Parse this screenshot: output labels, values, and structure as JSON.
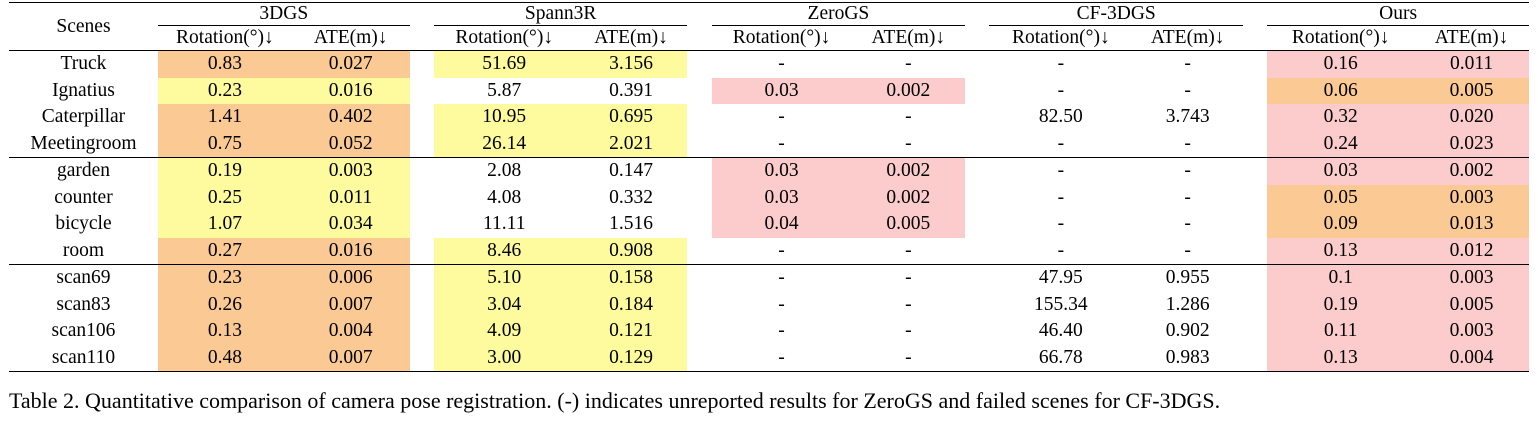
{
  "table": {
    "scene_header": "Scenes",
    "methods": [
      "3DGS",
      "Spann3R",
      "ZeroGS",
      "CF-3DGS",
      "Ours"
    ],
    "sub_headers": [
      "Rotation(°)↓",
      "ATE(m)↓"
    ],
    "colors": {
      "red": "#fccccc",
      "orange": "#fbca94",
      "yellow": "#fdfb9e"
    },
    "groups": [
      {
        "rows": [
          {
            "scene": "Truck",
            "values": [
              "0.83",
              "0.027",
              "51.69",
              "3.156",
              "-",
              "-",
              "-",
              "-",
              "0.16",
              "0.011"
            ],
            "colors": [
              "orange",
              "orange",
              "yellow",
              "yellow",
              "",
              "",
              "",
              "",
              "red",
              "red"
            ]
          },
          {
            "scene": "Ignatius",
            "values": [
              "0.23",
              "0.016",
              "5.87",
              "0.391",
              "0.03",
              "0.002",
              "-",
              "-",
              "0.06",
              "0.005"
            ],
            "colors": [
              "yellow",
              "yellow",
              "",
              "",
              "red",
              "red",
              "",
              "",
              "orange",
              "orange"
            ]
          },
          {
            "scene": "Caterpillar",
            "values": [
              "1.41",
              "0.402",
              "10.95",
              "0.695",
              "-",
              "-",
              "82.50",
              "3.743",
              "0.32",
              "0.020"
            ],
            "colors": [
              "orange",
              "orange",
              "yellow",
              "yellow",
              "",
              "",
              "",
              "",
              "red",
              "red"
            ]
          },
          {
            "scene": "Meetingroom",
            "values": [
              "0.75",
              "0.052",
              "26.14",
              "2.021",
              "-",
              "-",
              "-",
              "-",
              "0.24",
              "0.023"
            ],
            "colors": [
              "orange",
              "orange",
              "yellow",
              "yellow",
              "",
              "",
              "",
              "",
              "red",
              "red"
            ]
          }
        ]
      },
      {
        "rows": [
          {
            "scene": "garden",
            "values": [
              "0.19",
              "0.003",
              "2.08",
              "0.147",
              "0.03",
              "0.002",
              "-",
              "-",
              "0.03",
              "0.002"
            ],
            "colors": [
              "yellow",
              "yellow",
              "",
              "",
              "red",
              "red",
              "",
              "",
              "red",
              "red"
            ]
          },
          {
            "scene": "counter",
            "values": [
              "0.25",
              "0.011",
              "4.08",
              "0.332",
              "0.03",
              "0.002",
              "-",
              "-",
              "0.05",
              "0.003"
            ],
            "colors": [
              "yellow",
              "yellow",
              "",
              "",
              "red",
              "red",
              "",
              "",
              "orange",
              "orange"
            ]
          },
          {
            "scene": "bicycle",
            "values": [
              "1.07",
              "0.034",
              "11.11",
              "1.516",
              "0.04",
              "0.005",
              "-",
              "-",
              "0.09",
              "0.013"
            ],
            "colors": [
              "yellow",
              "yellow",
              "",
              "",
              "red",
              "red",
              "",
              "",
              "orange",
              "orange"
            ]
          },
          {
            "scene": "room",
            "values": [
              "0.27",
              "0.016",
              "8.46",
              "0.908",
              "-",
              "-",
              "-",
              "-",
              "0.13",
              "0.012"
            ],
            "colors": [
              "orange",
              "orange",
              "yellow",
              "yellow",
              "",
              "",
              "",
              "",
              "red",
              "red"
            ]
          }
        ]
      },
      {
        "rows": [
          {
            "scene": "scan69",
            "values": [
              "0.23",
              "0.006",
              "5.10",
              "0.158",
              "-",
              "-",
              "47.95",
              "0.955",
              "0.1",
              "0.003"
            ],
            "colors": [
              "orange",
              "orange",
              "yellow",
              "yellow",
              "",
              "",
              "",
              "",
              "red",
              "red"
            ]
          },
          {
            "scene": "scan83",
            "values": [
              "0.26",
              "0.007",
              "3.04",
              "0.184",
              "-",
              "-",
              "155.34",
              "1.286",
              "0.19",
              "0.005"
            ],
            "colors": [
              "orange",
              "orange",
              "yellow",
              "yellow",
              "",
              "",
              "",
              "",
              "red",
              "red"
            ]
          },
          {
            "scene": "scan106",
            "values": [
              "0.13",
              "0.004",
              "4.09",
              "0.121",
              "-",
              "-",
              "46.40",
              "0.902",
              "0.11",
              "0.003"
            ],
            "colors": [
              "orange",
              "orange",
              "yellow",
              "yellow",
              "",
              "",
              "",
              "",
              "red",
              "red"
            ]
          },
          {
            "scene": "scan110",
            "values": [
              "0.48",
              "0.007",
              "3.00",
              "0.129",
              "-",
              "-",
              "66.78",
              "0.983",
              "0.13",
              "0.004"
            ],
            "colors": [
              "orange",
              "orange",
              "yellow",
              "yellow",
              "",
              "",
              "",
              "",
              "red",
              "red"
            ]
          }
        ]
      }
    ]
  },
  "caption": "Table 2. Quantitative comparison of camera pose registration. (-) indicates unreported results for ZeroGS and failed scenes for CF-3DGS."
}
